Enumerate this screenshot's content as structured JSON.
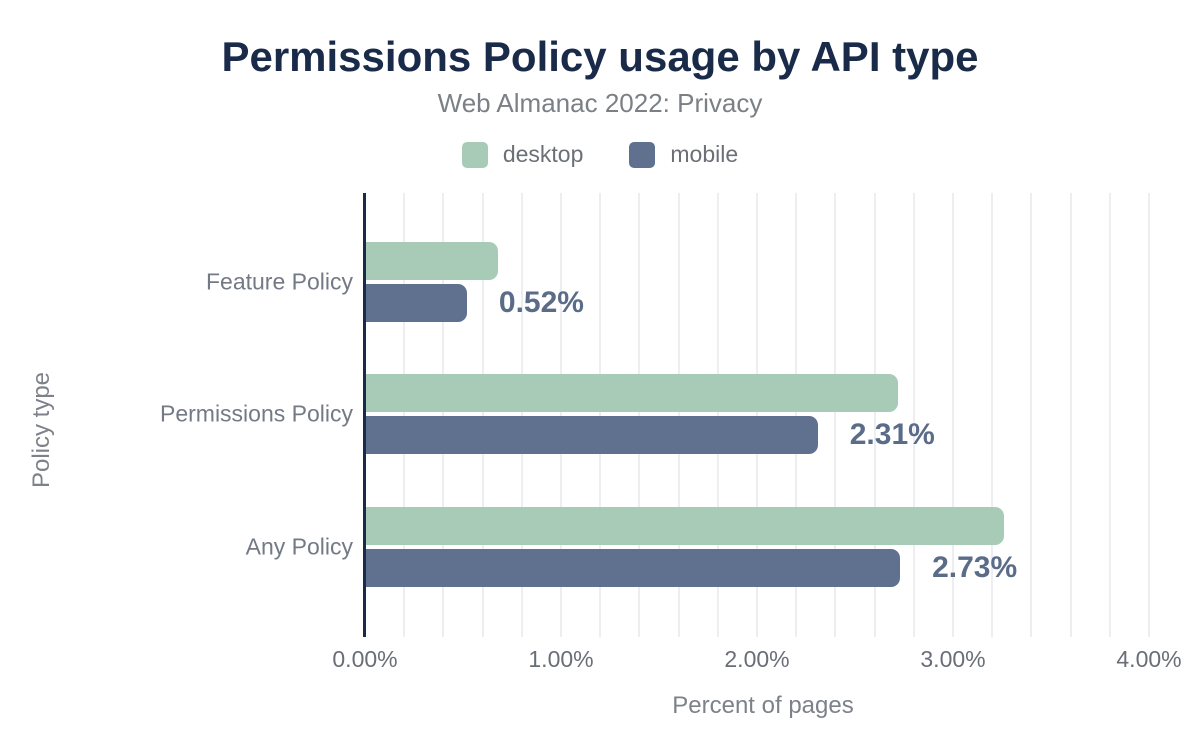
{
  "chart_data": {
    "type": "bar",
    "orientation": "horizontal",
    "title": "Permissions Policy usage by API type",
    "subtitle": "Web Almanac 2022: Privacy",
    "categories": [
      "Feature Policy",
      "Permissions Policy",
      "Any Policy"
    ],
    "series": [
      {
        "name": "desktop",
        "color": "#a8cbb8",
        "values": [
          0.68,
          2.72,
          3.26
        ]
      },
      {
        "name": "mobile",
        "color": "#5f718e",
        "values": [
          0.52,
          2.31,
          2.73
        ]
      }
    ],
    "value_labels": {
      "labeled_series": "mobile",
      "texts": [
        "0.52%",
        "2.31%",
        "2.73%"
      ]
    },
    "xlabel": "Percent of pages",
    "ylabel": "Policy type",
    "xlim": [
      0,
      4.05
    ],
    "xticks": {
      "values": [
        0,
        1,
        2,
        3,
        4
      ],
      "labels": [
        "0.00%",
        "1.00%",
        "2.00%",
        "3.00%",
        "4.00%"
      ]
    },
    "grid": {
      "show": true,
      "step": 0.2,
      "color": "#eceef2"
    },
    "legend_position": "top",
    "colors": {
      "title": "#1a2b49",
      "subtitle": "#7b8086",
      "axis_line": "#1a2b49",
      "value_label": "#5b6c89",
      "category_label": "#737a86",
      "tick_label": "#696e77",
      "axis_title": "#7d828a",
      "background": "#ffffff"
    }
  }
}
